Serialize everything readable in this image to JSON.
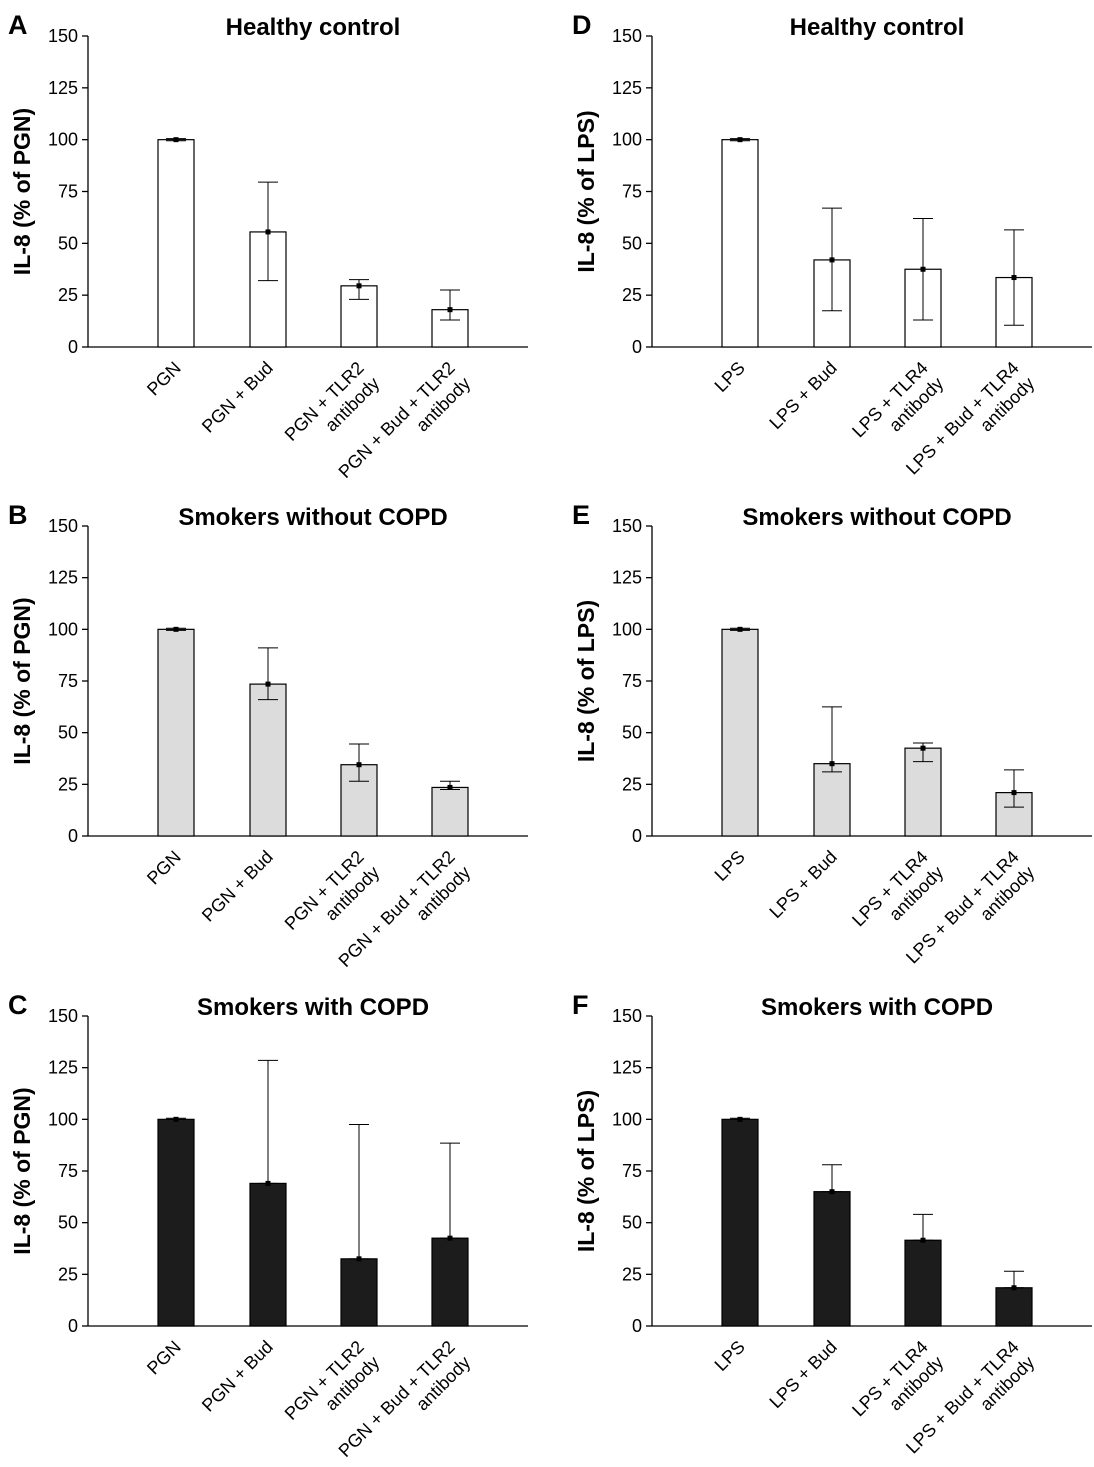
{
  "chart_data": [
    {
      "panel_letter": "A",
      "type": "bar",
      "title": "Healthy control",
      "ylabel": "IL-8 (% of PGN)",
      "xlabel": "",
      "ylim": [
        0,
        150
      ],
      "yticks": [
        0,
        25,
        50,
        75,
        100,
        125,
        150
      ],
      "categories": [
        [
          "PGN"
        ],
        [
          "PGN + Bud"
        ],
        [
          "PGN + TLR2",
          "antibody"
        ],
        [
          "PGN + Bud + TLR2",
          "antibody"
        ]
      ],
      "values": [
        100,
        55.5,
        29.5,
        18
      ],
      "error_low": [
        99.5,
        32,
        23,
        13
      ],
      "error_high": [
        100.5,
        79.5,
        32.5,
        27.5
      ],
      "bar_color": "#ffffff",
      "grid": false,
      "legend": "none"
    },
    {
      "panel_letter": "B",
      "type": "bar",
      "title": "Smokers without COPD",
      "ylabel": "IL-8 (% of PGN)",
      "xlabel": "",
      "ylim": [
        0,
        150
      ],
      "yticks": [
        0,
        25,
        50,
        75,
        100,
        125,
        150
      ],
      "categories": [
        [
          "PGN"
        ],
        [
          "PGN + Bud"
        ],
        [
          "PGN + TLR2",
          "antibody"
        ],
        [
          "PGN + Bud + TLR2",
          "antibody"
        ]
      ],
      "values": [
        100,
        73.5,
        34.5,
        23.5
      ],
      "error_low": [
        99.5,
        66,
        26.5,
        22.5
      ],
      "error_high": [
        100.5,
        91,
        44.5,
        26.5
      ],
      "bar_color": "#dcdcdc",
      "grid": false,
      "legend": "none"
    },
    {
      "panel_letter": "C",
      "type": "bar",
      "title": "Smokers with COPD",
      "ylabel": "IL-8 (% of PGN)",
      "xlabel": "",
      "ylim": [
        0,
        150
      ],
      "yticks": [
        0,
        25,
        50,
        75,
        100,
        125,
        150
      ],
      "categories": [
        [
          "PGN"
        ],
        [
          "PGN + Bud"
        ],
        [
          "PGN + TLR2",
          "antibody"
        ],
        [
          "PGN + Bud + TLR2",
          "antibody"
        ]
      ],
      "values": [
        100,
        69,
        32.5,
        42.5
      ],
      "error_low": [
        100,
        69,
        32.5,
        42.5
      ],
      "error_high": [
        100.5,
        128.5,
        97.5,
        88.5
      ],
      "bar_color": "#1c1c1c",
      "grid": false,
      "legend": "none"
    },
    {
      "panel_letter": "D",
      "type": "bar",
      "title": "Healthy control",
      "ylabel": "IL-8 (% of LPS)",
      "xlabel": "",
      "ylim": [
        0,
        150
      ],
      "yticks": [
        0,
        25,
        50,
        75,
        100,
        125,
        150
      ],
      "categories": [
        [
          "LPS"
        ],
        [
          "LPS + Bud"
        ],
        [
          "LPS + TLR4",
          "antibody"
        ],
        [
          "LPS + Bud + TLR4",
          "antibody"
        ]
      ],
      "values": [
        100,
        42,
        37.5,
        33.5
      ],
      "error_low": [
        99.5,
        17.5,
        13,
        10.5
      ],
      "error_high": [
        100.5,
        67,
        62,
        56.5
      ],
      "bar_color": "#ffffff",
      "grid": false,
      "legend": "none"
    },
    {
      "panel_letter": "E",
      "type": "bar",
      "title": "Smokers without COPD",
      "ylabel": "IL-8 (% of LPS)",
      "xlabel": "",
      "ylim": [
        0,
        150
      ],
      "yticks": [
        0,
        25,
        50,
        75,
        100,
        125,
        150
      ],
      "categories": [
        [
          "LPS"
        ],
        [
          "LPS + Bud"
        ],
        [
          "LPS + TLR4",
          "antibody"
        ],
        [
          "LPS + Bud + TLR4",
          "antibody"
        ]
      ],
      "values": [
        100,
        35,
        42.5,
        21
      ],
      "error_low": [
        99.5,
        31,
        36,
        14
      ],
      "error_high": [
        100.5,
        62.5,
        45,
        32
      ],
      "bar_color": "#dcdcdc",
      "grid": false,
      "legend": "none"
    },
    {
      "panel_letter": "F",
      "type": "bar",
      "title": "Smokers with COPD",
      "ylabel": "IL-8 (% of LPS)",
      "xlabel": "",
      "ylim": [
        0,
        150
      ],
      "yticks": [
        0,
        25,
        50,
        75,
        100,
        125,
        150
      ],
      "categories": [
        [
          "LPS"
        ],
        [
          "LPS + Bud"
        ],
        [
          "LPS + TLR4",
          "antibody"
        ],
        [
          "LPS + Bud + TLR4",
          "antibody"
        ]
      ],
      "values": [
        100,
        65,
        41.5,
        18.5
      ],
      "error_low": [
        100,
        65,
        41.5,
        18.5
      ],
      "error_high": [
        100.5,
        78,
        54,
        26.5
      ],
      "bar_color": "#1c1c1c",
      "grid": false,
      "legend": "none"
    }
  ]
}
